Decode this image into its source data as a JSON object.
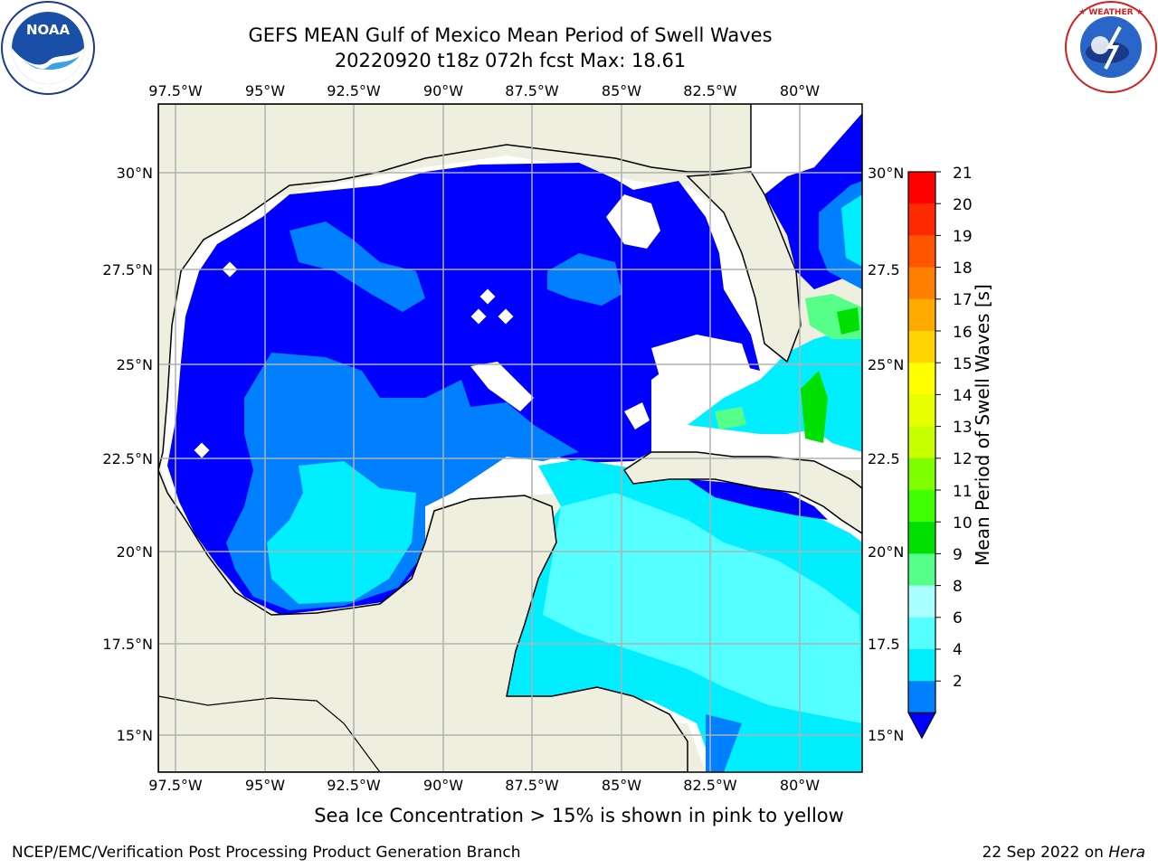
{
  "header": {
    "title": "GEFS MEAN Gulf of Mexico Mean Period of Swell Waves",
    "subtitle": "20220920 t18z 072h fcst   Max: 18.61"
  },
  "logos": {
    "noaa": {
      "name": "noaa-logo",
      "text": "NOAA",
      "ring_text": "NATIONAL OCEANIC AND ATMOSPHERIC ADMINISTRATION · U.S. DEPARTMENT OF COMMERCE"
    },
    "nws": {
      "name": "nws-logo",
      "ring_text": "NATIONAL WEATHER SERVICE"
    }
  },
  "map": {
    "lon_labels": [
      "97.5°W",
      "95°W",
      "92.5°W",
      "90°W",
      "87.5°W",
      "85°W",
      "82.5°W",
      "80°W"
    ],
    "lat_labels_left": [
      "30°N",
      "27.5°N",
      "25°N",
      "22.5°N",
      "20°N",
      "17.5°N",
      "15°N"
    ],
    "lat_labels_right": [
      "30°N",
      "27.5",
      "25°N",
      "22.5",
      "20°N",
      "17.5",
      "15°N"
    ],
    "land_color": "#efefdf",
    "grid_color": "#b0b0b0"
  },
  "colorbar": {
    "label": "Mean Period of Swell Waves [s]",
    "ticks": [
      "21",
      "20",
      "19",
      "18",
      "17",
      "16",
      "15",
      "14",
      "13",
      "12",
      "11",
      "10",
      "9",
      "8",
      "6",
      "4",
      "2"
    ],
    "colors": [
      "#ff0000",
      "#ff2a00",
      "#ff5500",
      "#ff7f00",
      "#ffaa00",
      "#ffd400",
      "#ffff00",
      "#e8ff00",
      "#c8ff00",
      "#7fff00",
      "#40ff00",
      "#00e000",
      "#55ff88",
      "#aaffff",
      "#55ffff",
      "#00eeff",
      "#0080ff",
      "#0000ff"
    ]
  },
  "footer": {
    "note": "Sea Ice Concentration > 15% is shown in pink to yellow",
    "left": "NCEP/EMC/Verification Post Processing Product Generation Branch",
    "right_date": "22 Sep 2022 on ",
    "right_machine": "Hera"
  }
}
